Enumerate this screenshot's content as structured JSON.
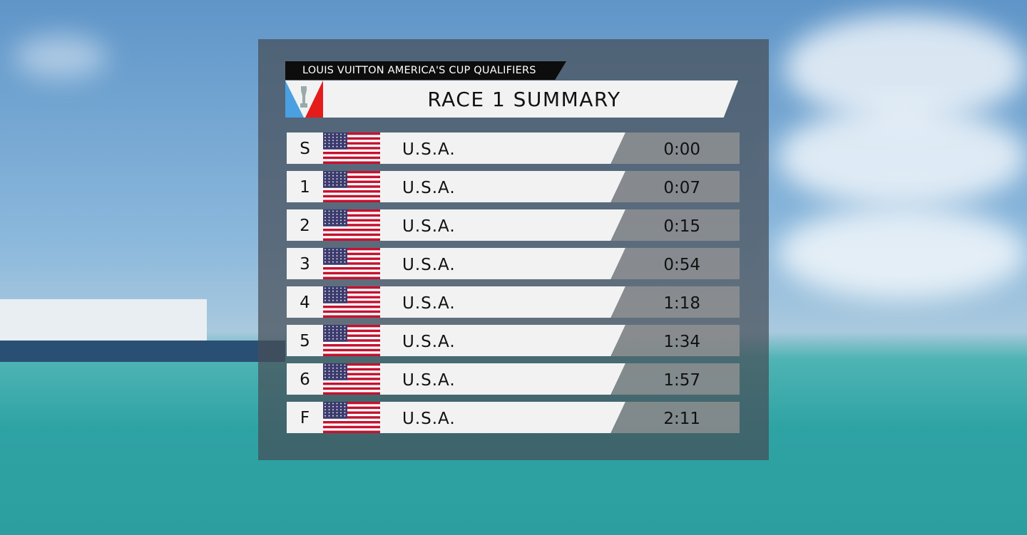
{
  "header": {
    "subtitle": "LOUIS VUITTON AMERICA'S CUP QUALIFIERS",
    "title": "RACE 1 SUMMARY"
  },
  "table": {
    "rows": [
      [
        "S",
        "U.S.A.",
        "0:00"
      ],
      [
        "1",
        "U.S.A.",
        "0:07"
      ],
      [
        "2",
        "U.S.A.",
        "0:15"
      ],
      [
        "3",
        "U.S.A.",
        "0:54"
      ],
      [
        "4",
        "U.S.A.",
        "1:18"
      ],
      [
        "5",
        "U.S.A.",
        "1:34"
      ],
      [
        "6",
        "U.S.A.",
        "1:57"
      ],
      [
        "F",
        "U.S.A.",
        "2:11"
      ]
    ]
  }
}
